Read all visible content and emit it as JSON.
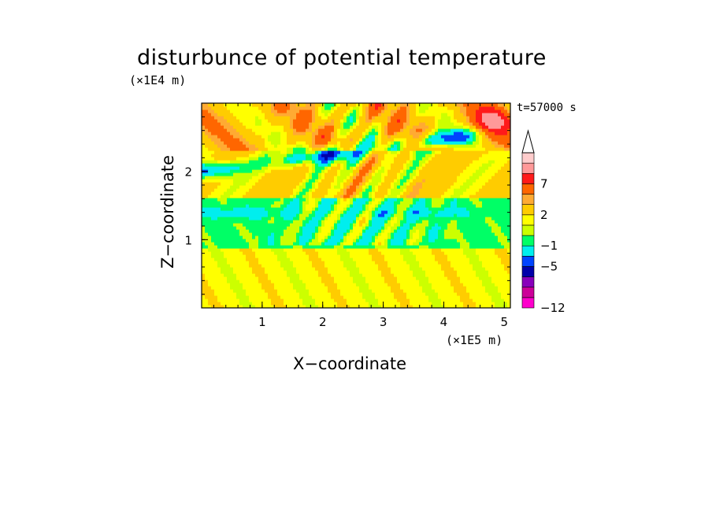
{
  "chart_data": {
    "type": "heatmap",
    "title": "disturbunce of potential temperature",
    "xlabel": "X−coordinate",
    "ylabel": "Z−coordinate",
    "x_scale_label": "(×1E5 m)",
    "y_scale_label": "(×1E4 m)",
    "time_label": "t=57000 s",
    "xlim": [
      0,
      5.1
    ],
    "ylim": [
      0,
      3.0
    ],
    "x_ticks": [
      "1",
      "2",
      "3",
      "4",
      "5"
    ],
    "y_ticks": [
      "1",
      "2"
    ],
    "colorbar": {
      "levels": [
        -12,
        -10,
        -8,
        -7,
        -5,
        -3,
        -1,
        0,
        1,
        2,
        4,
        5,
        7,
        9,
        11
      ],
      "labeled_ticks": [
        "7",
        "2",
        "−1",
        "−5",
        "−12"
      ],
      "colors_bottom_to_top": [
        "#ff00cc",
        "#cc0099",
        "#8800bb",
        "#0000aa",
        "#0044ff",
        "#00eeee",
        "#00ff66",
        "#ccff00",
        "#ffff00",
        "#ffcc00",
        "#ffaa33",
        "#ff6600",
        "#ff1a1a",
        "#ff9999",
        "#ffcccc"
      ],
      "extend": "max"
    },
    "bands": [
      {
        "z_range": [
          0.0,
          0.9
        ],
        "value": 1.5,
        "description_color": "#ffcc00"
      },
      {
        "z_range": [
          0.9,
          1.6
        ],
        "value": -0.3,
        "description_color": "#00ff66"
      },
      {
        "z_range": [
          1.3,
          1.5
        ],
        "value": -1.5,
        "description_color": "#00eeee"
      },
      {
        "z_range": [
          1.6,
          2.3
        ],
        "value": 2.5,
        "description_color": "#ffaa33"
      },
      {
        "z_range": [
          1.9,
          2.3
        ],
        "value": -4.0,
        "description_color": "#0044ff"
      },
      {
        "z_range": [
          2.3,
          3.0
        ],
        "value": 3.5,
        "description_color": "#ff6600"
      }
    ],
    "grid": false,
    "legend": "colorbar-right"
  }
}
